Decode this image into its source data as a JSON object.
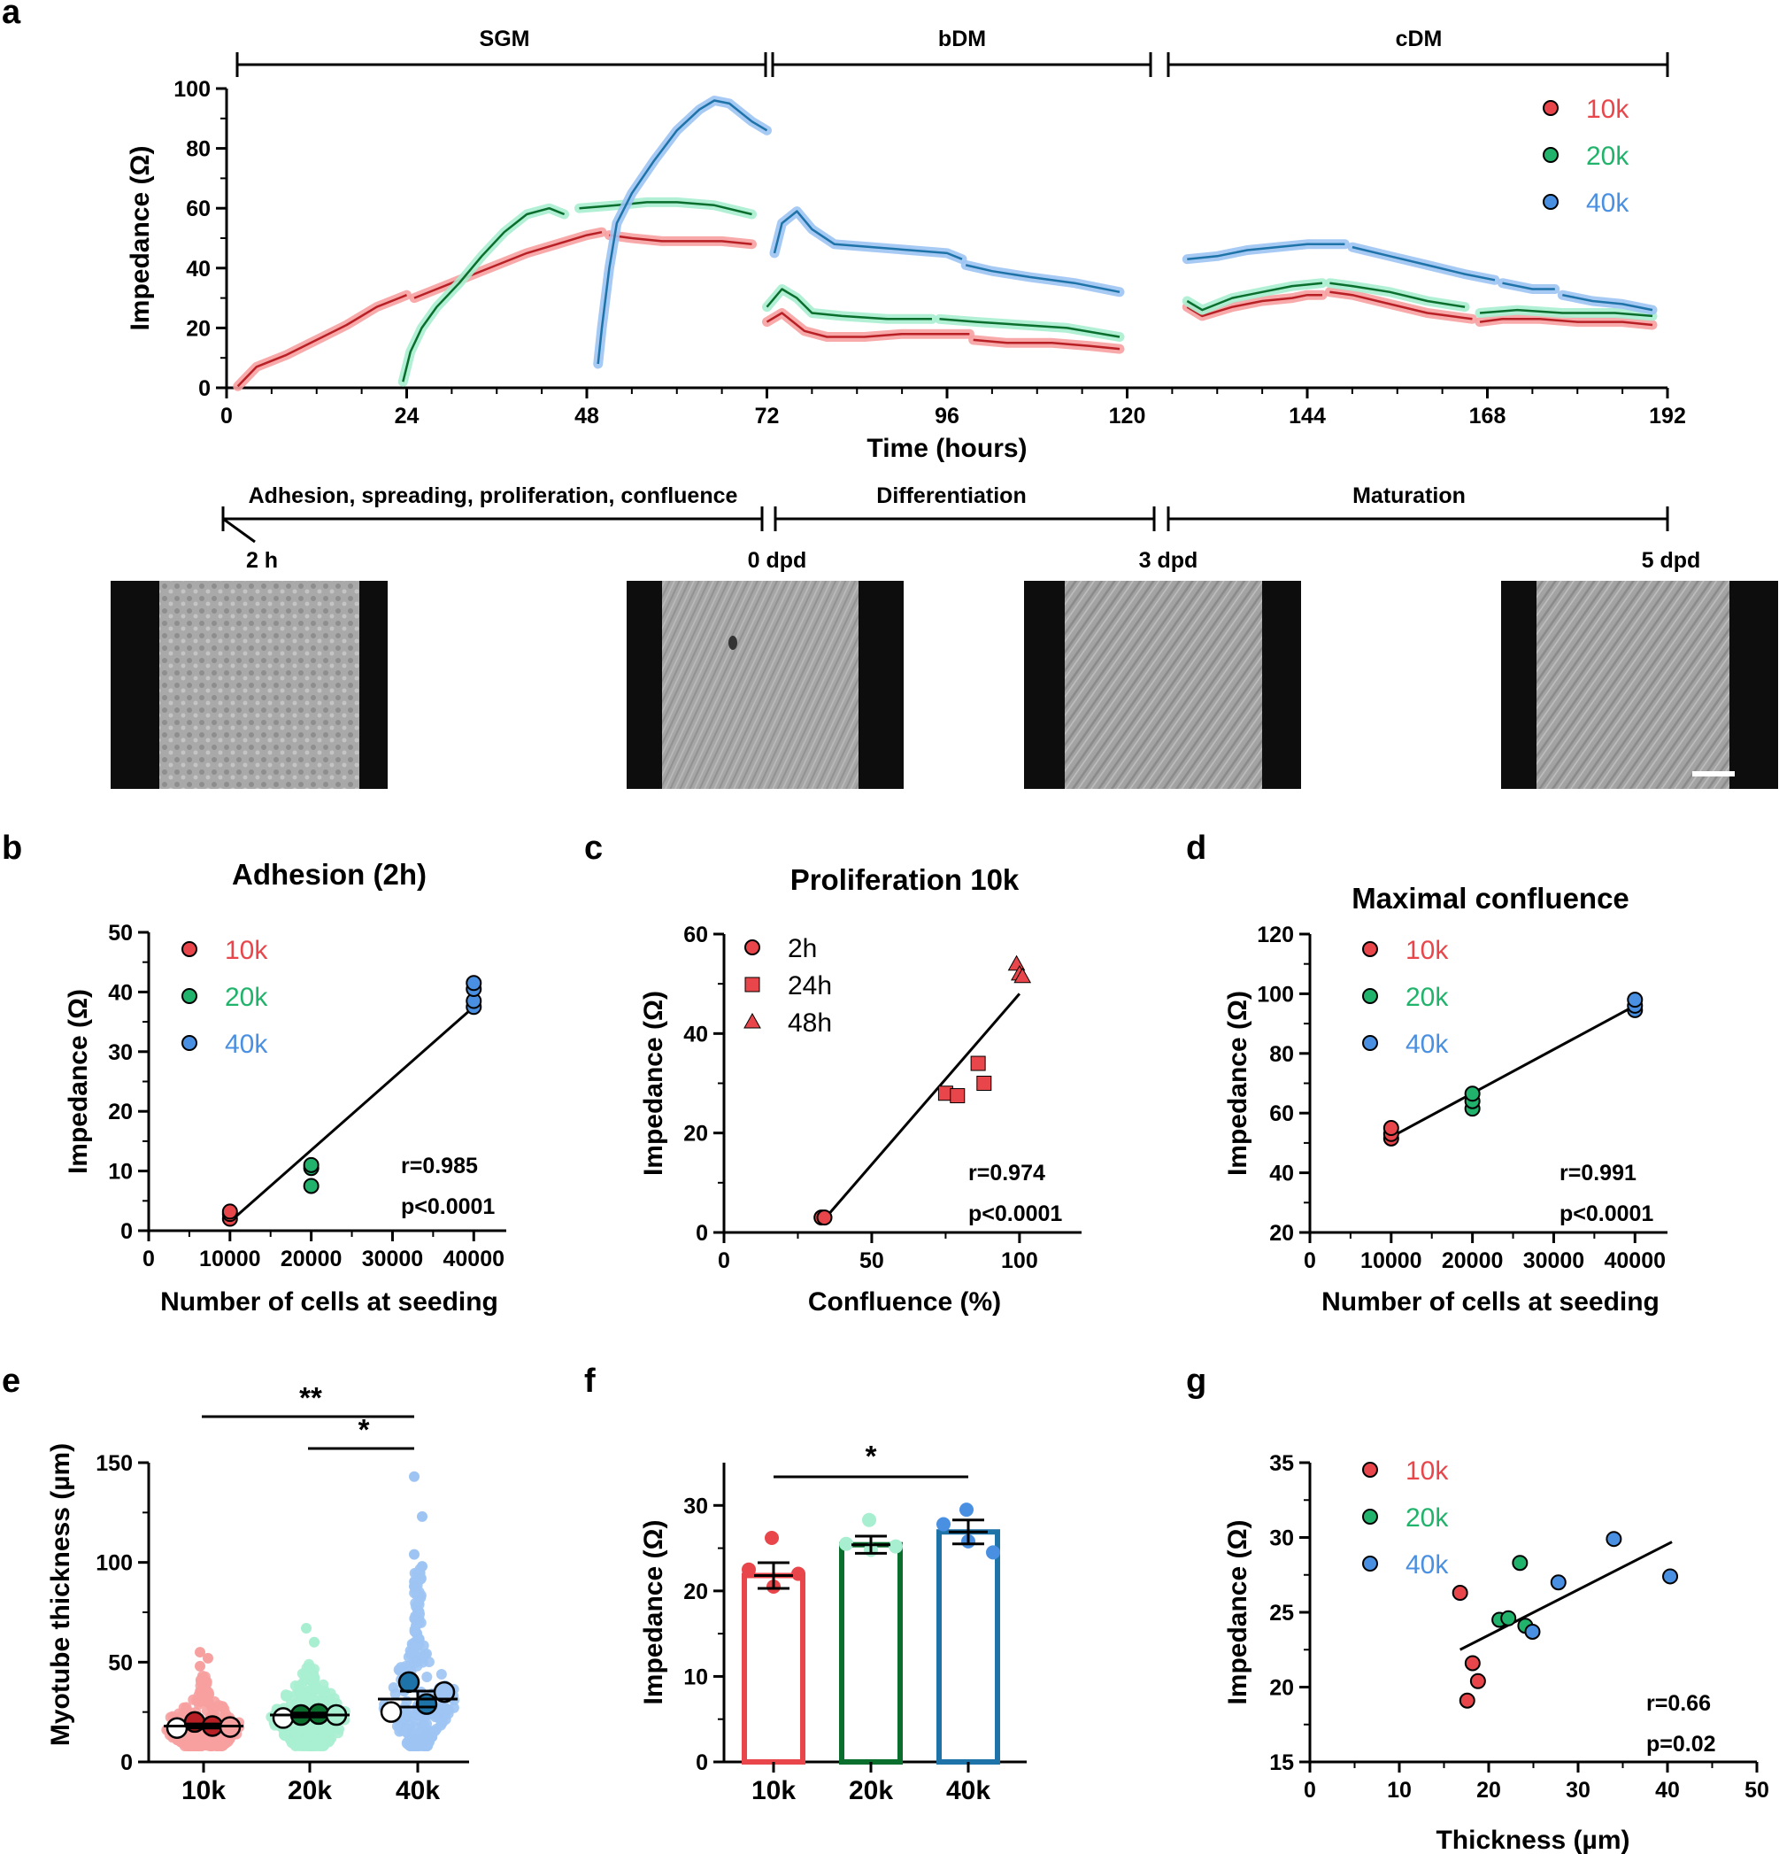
{
  "colors": {
    "k10": "#e8464a",
    "k20": "#21b36b",
    "k40": "#4a90e2",
    "dark10": "#b82025",
    "dark20": "#0a6e2d",
    "dark40": "#1e73a8",
    "light10": "#f7a0a0",
    "light20": "#a8eed0",
    "light40": "#9dc4f3"
  },
  "chart_data": [
    {
      "panel": "a",
      "type": "line",
      "xlabel": "Time (hours)",
      "ylabel": "Impedance (Ω)",
      "xlim": [
        0,
        192
      ],
      "ylim": [
        0,
        100
      ],
      "xticks": [
        "0",
        "24",
        "48",
        "72",
        "96",
        "120",
        "144",
        "168",
        "192"
      ],
      "yticks": [
        "0",
        "20",
        "40",
        "60",
        "80",
        "100"
      ],
      "phases": [
        "SGM",
        "bDM",
        "cDM"
      ],
      "legend": [
        "10k",
        "20k",
        "40k"
      ],
      "series": [
        {
          "name": "10k",
          "segments": [
            [
              [
                1.5,
                0.5
              ],
              [
                4,
                7
              ],
              [
                8,
                11
              ],
              [
                12,
                16
              ],
              [
                16,
                21
              ],
              [
                20,
                27
              ],
              [
                23,
                30
              ],
              [
                24,
                31
              ]
            ],
            [
              [
                25,
                30
              ],
              [
                28,
                33
              ],
              [
                32,
                37
              ],
              [
                36,
                41
              ],
              [
                40,
                45
              ],
              [
                44,
                48
              ],
              [
                48,
                51
              ],
              [
                50,
                52
              ]
            ],
            [
              [
                51,
                51
              ],
              [
                54,
                50
              ],
              [
                58,
                49
              ],
              [
                62,
                49
              ],
              [
                66,
                49
              ],
              [
                70,
                48
              ]
            ],
            [
              [
                72,
                22
              ],
              [
                74,
                25
              ],
              [
                77,
                19
              ],
              [
                80,
                17
              ],
              [
                85,
                17
              ],
              [
                90,
                18
              ],
              [
                96,
                18
              ],
              [
                99,
                18
              ]
            ],
            [
              [
                99.5,
                16
              ],
              [
                104,
                15
              ],
              [
                110,
                15
              ],
              [
                115,
                14
              ],
              [
                119,
                13
              ]
            ],
            [
              [
                128,
                27
              ],
              [
                130,
                24
              ],
              [
                134,
                27
              ],
              [
                138,
                29
              ],
              [
                142,
                30
              ],
              [
                144,
                31
              ],
              [
                146,
                31
              ]
            ],
            [
              [
                147,
                32
              ],
              [
                150,
                31
              ],
              [
                155,
                28
              ],
              [
                160,
                25
              ],
              [
                163,
                24
              ],
              [
                166,
                23
              ]
            ],
            [
              [
                167,
                22
              ],
              [
                170,
                23
              ],
              [
                175,
                23
              ],
              [
                180,
                22
              ],
              [
                186,
                22
              ],
              [
                190,
                21
              ]
            ]
          ]
        },
        {
          "name": "20k",
          "segments": [
            [
              [
                23.5,
                2
              ],
              [
                24.5,
                12
              ],
              [
                26,
                20
              ],
              [
                28,
                27
              ],
              [
                31,
                35
              ],
              [
                34,
                44
              ],
              [
                37,
                52
              ],
              [
                40,
                58
              ],
              [
                43,
                60
              ],
              [
                45,
                58
              ]
            ],
            [
              [
                47,
                60
              ],
              [
                52,
                61
              ],
              [
                56,
                62
              ],
              [
                60,
                62
              ],
              [
                65,
                61
              ],
              [
                70,
                58
              ]
            ],
            [
              [
                72,
                27
              ],
              [
                74,
                33
              ],
              [
                76,
                30
              ],
              [
                78,
                25
              ],
              [
                82,
                24
              ],
              [
                88,
                23
              ],
              [
                94,
                23
              ]
            ],
            [
              [
                95,
                23
              ],
              [
                100,
                22
              ],
              [
                106,
                21
              ],
              [
                112,
                20
              ],
              [
                119,
                17
              ]
            ],
            [
              [
                128,
                29
              ],
              [
                130,
                26
              ],
              [
                134,
                30
              ],
              [
                138,
                32
              ],
              [
                142,
                34
              ],
              [
                146,
                35
              ]
            ],
            [
              [
                147,
                35
              ],
              [
                150,
                34
              ],
              [
                155,
                32
              ],
              [
                160,
                29
              ],
              [
                165,
                27
              ]
            ],
            [
              [
                167,
                25
              ],
              [
                172,
                26
              ],
              [
                178,
                25
              ],
              [
                185,
                25
              ],
              [
                190,
                24
              ]
            ]
          ]
        },
        {
          "name": "40k",
          "segments": [
            [
              [
                49.5,
                8
              ],
              [
                50,
                20
              ],
              [
                51,
                40
              ],
              [
                52,
                55
              ],
              [
                54,
                65
              ],
              [
                57,
                76
              ],
              [
                60,
                86
              ],
              [
                63,
                93
              ],
              [
                65,
                96
              ],
              [
                67,
                95
              ],
              [
                70,
                89
              ],
              [
                72,
                86
              ]
            ],
            [
              [
                73,
                45
              ],
              [
                74,
                55
              ],
              [
                76,
                59
              ],
              [
                78,
                53
              ],
              [
                81,
                48
              ],
              [
                86,
                47
              ],
              [
                91,
                46
              ],
              [
                96,
                45
              ],
              [
                98,
                43
              ]
            ],
            [
              [
                98.5,
                41
              ],
              [
                102,
                39
              ],
              [
                107,
                37
              ],
              [
                113,
                35
              ],
              [
                119,
                32
              ]
            ],
            [
              [
                128,
                43
              ],
              [
                132,
                44
              ],
              [
                136,
                46
              ],
              [
                140,
                47
              ],
              [
                144,
                48
              ],
              [
                149,
                48
              ]
            ],
            [
              [
                150,
                47
              ],
              [
                155,
                44
              ],
              [
                160,
                41
              ],
              [
                165,
                38
              ],
              [
                169,
                36
              ]
            ],
            [
              [
                170,
                35
              ],
              [
                174,
                33
              ],
              [
                177,
                33
              ]
            ],
            [
              [
                178,
                31
              ],
              [
                182,
                29
              ],
              [
                186,
                28
              ],
              [
                190,
                26
              ]
            ]
          ]
        }
      ]
    },
    {
      "panel": "b",
      "type": "scatter",
      "title": "Adhesion (2h)",
      "xlabel": "Number of cells at seeding",
      "ylabel": "Impedance (Ω)",
      "xlim": [
        0,
        44000
      ],
      "ylim": [
        0,
        50
      ],
      "xticks": [
        "0",
        "10000",
        "20000",
        "30000",
        "40000"
      ],
      "yticks": [
        "0",
        "10",
        "20",
        "30",
        "40",
        "50"
      ],
      "legend": [
        "10k",
        "20k",
        "40k"
      ],
      "series": [
        {
          "name": "10k",
          "x": [
            10000,
            10000,
            10000
          ],
          "y": [
            2,
            2.8,
            3.2
          ]
        },
        {
          "name": "20k",
          "x": [
            20000,
            20000,
            20000
          ],
          "y": [
            7.5,
            10.5,
            11
          ]
        },
        {
          "name": "40k",
          "x": [
            40000,
            40000,
            40000,
            40000
          ],
          "y": [
            37.5,
            38.5,
            40.5,
            41.5
          ]
        }
      ],
      "fit": [
        [
          10000,
          1.5
        ],
        [
          40000,
          37.5
        ]
      ],
      "r": "r=0.985",
      "p": "p<0.0001"
    },
    {
      "panel": "c",
      "type": "scatter",
      "title": "Proliferation 10k",
      "xlabel": "Confluence (%)",
      "ylabel": "Impedance (Ω)",
      "xlim": [
        0,
        121
      ],
      "ylim": [
        0,
        60
      ],
      "xticks": [
        "0",
        "50",
        "100"
      ],
      "yticks": [
        "0",
        "20",
        "40",
        "60"
      ],
      "legend": [
        "2h",
        "24h",
        "48h"
      ],
      "series": [
        {
          "name": "2h",
          "x": [
            33,
            34
          ],
          "y": [
            3,
            3
          ]
        },
        {
          "name": "24h",
          "x": [
            75,
            79,
            86,
            88
          ],
          "y": [
            28,
            27.5,
            34,
            30
          ]
        },
        {
          "name": "48h",
          "x": [
            99,
            100,
            101
          ],
          "y": [
            54,
            52,
            51.5
          ]
        }
      ],
      "fit": [
        [
          33,
          2
        ],
        [
          100,
          48
        ]
      ],
      "r": "r=0.974",
      "p": "p<0.0001"
    },
    {
      "panel": "d",
      "type": "scatter",
      "title": "Maximal confluence",
      "xlabel": "Number of cells at seeding",
      "ylabel": "Impedance (Ω)",
      "xlim": [
        0,
        44000
      ],
      "ylim": [
        20,
        120
      ],
      "xticks": [
        "0",
        "10000",
        "20000",
        "30000",
        "40000"
      ],
      "yticks": [
        "20",
        "40",
        "60",
        "80",
        "100",
        "120"
      ],
      "legend": [
        "10k",
        "20k",
        "40k"
      ],
      "series": [
        {
          "name": "10k",
          "x": [
            10000,
            10000,
            10000
          ],
          "y": [
            51.5,
            53,
            55
          ]
        },
        {
          "name": "20k",
          "x": [
            20000,
            20000,
            20000
          ],
          "y": [
            61.5,
            64,
            66.5
          ]
        },
        {
          "name": "40k",
          "x": [
            40000,
            40000,
            40000
          ],
          "y": [
            94.5,
            96,
            98
          ]
        }
      ],
      "fit": [
        [
          10000,
          52
        ],
        [
          40000,
          96
        ]
      ],
      "r": "r=0.991",
      "p": "p<0.0001"
    },
    {
      "panel": "e",
      "type": "scatter",
      "ylabel": "Myotube thickness (µm)",
      "ylim": [
        0,
        150
      ],
      "yticks": [
        "0",
        "50",
        "100",
        "150"
      ],
      "categories": [
        "10k",
        "20k",
        "40k"
      ],
      "means": [
        18,
        23.5,
        31.5
      ],
      "sems": [
        1,
        1,
        4
      ],
      "replicates": [
        [
          17,
          20,
          18,
          17.5
        ],
        [
          22,
          23.5,
          24,
          23.5
        ],
        [
          25,
          40,
          29,
          35
        ]
      ],
      "cell_max": [
        57,
        67,
        143
      ],
      "cell_extremes": [
        [
          55,
          52,
          48
        ],
        [
          67,
          60
        ],
        [
          143,
          123,
          104,
          98,
          88
        ]
      ],
      "significance": [
        {
          "from": "10k",
          "to": "40k",
          "label": "**"
        },
        {
          "from": "20k",
          "to": "40k",
          "label": "*"
        }
      ]
    },
    {
      "panel": "f",
      "type": "bar",
      "ylabel": "Impedance (Ω)",
      "ylim": [
        0,
        35
      ],
      "yticks": [
        "0",
        "10",
        "20",
        "30"
      ],
      "categories": [
        "10k",
        "20k",
        "40k"
      ],
      "values": [
        21.8,
        25.4,
        26.9
      ],
      "sems": [
        1.5,
        1.0,
        1.4
      ],
      "points": [
        [
          26.2,
          22.5,
          20.5,
          22
        ],
        [
          28.3,
          25.5,
          24.8,
          25.2
        ],
        [
          29.5,
          27.8,
          25.8,
          24.5
        ]
      ],
      "significance": [
        {
          "from": "10k",
          "to": "40k",
          "label": "*"
        }
      ]
    },
    {
      "panel": "g",
      "type": "scatter",
      "xlabel": "Thickness (µm)",
      "ylabel": "Impedance (Ω)",
      "xlim": [
        0,
        50
      ],
      "ylim": [
        15,
        35
      ],
      "xticks": [
        "0",
        "10",
        "20",
        "30",
        "40",
        "50"
      ],
      "yticks": [
        "15",
        "20",
        "25",
        "30",
        "35"
      ],
      "legend": [
        "10k",
        "20k",
        "40k"
      ],
      "series": [
        {
          "name": "10k",
          "x": [
            16.8,
            17.6,
            18.2,
            18.8
          ],
          "y": [
            26.3,
            19.1,
            21.6,
            20.4
          ]
        },
        {
          "name": "20k",
          "x": [
            21.2,
            22.2,
            23.5,
            24.1
          ],
          "y": [
            24.5,
            24.6,
            28.3,
            24.1
          ]
        },
        {
          "name": "40k",
          "x": [
            24.9,
            27.8,
            34,
            40.3
          ],
          "y": [
            23.7,
            27,
            29.9,
            27.4
          ]
        }
      ],
      "fit": [
        [
          16.8,
          22.5
        ],
        [
          40.5,
          29.7
        ]
      ],
      "r": "r=0.66",
      "p": "p=0.02"
    }
  ],
  "panel_a": {
    "stages": [
      "Adhesion, spreading, proliferation, confluence",
      "Differentiation",
      "Maturation"
    ],
    "timepoints": [
      "2 h",
      "0 dpd",
      "3 dpd",
      "5 dpd"
    ]
  }
}
